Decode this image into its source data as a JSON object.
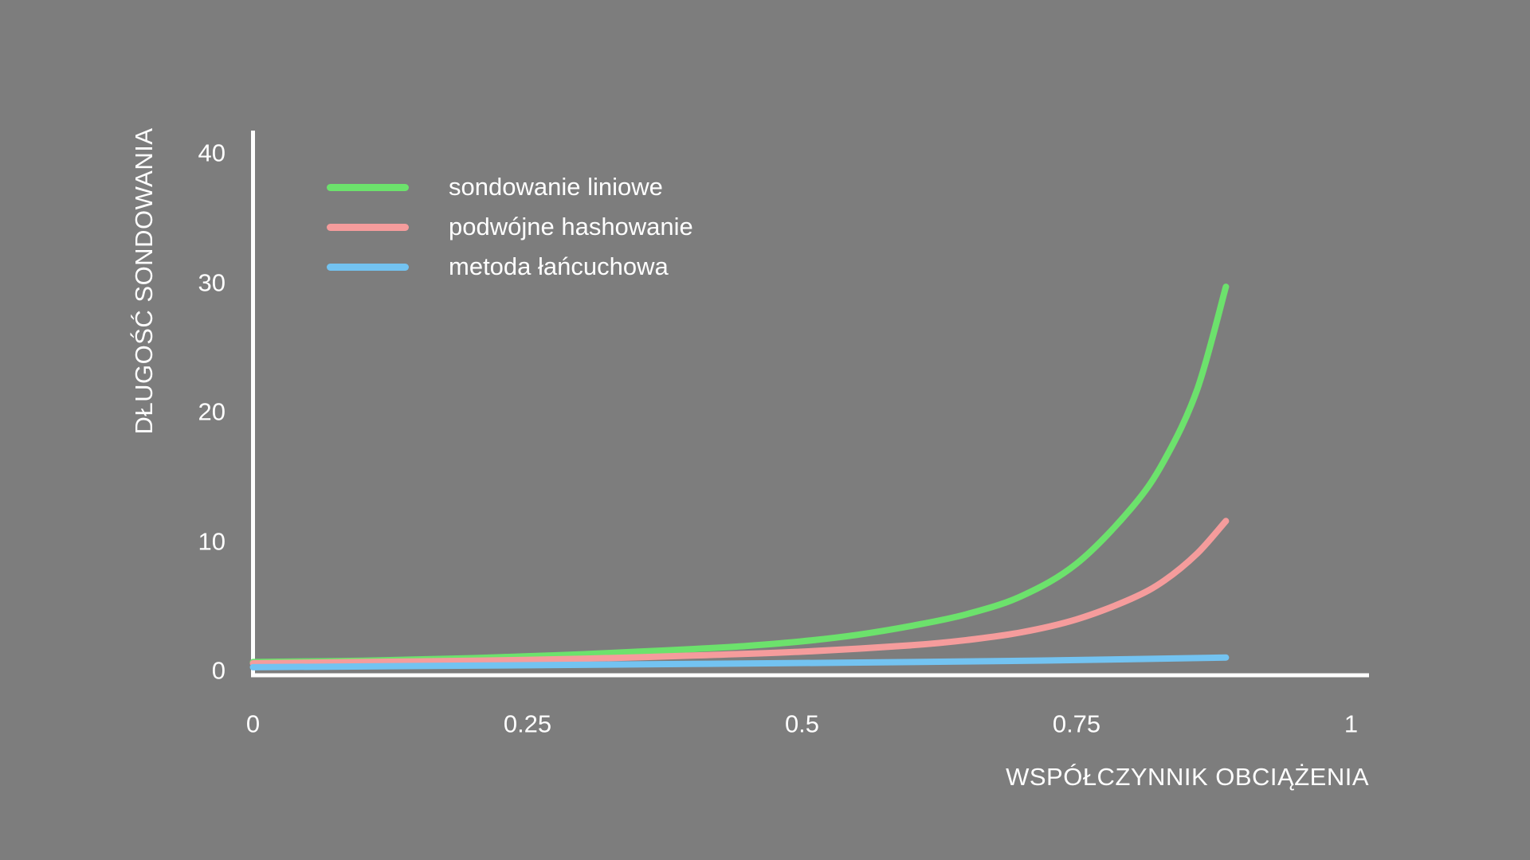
{
  "canvas": {
    "background_color": "#7d7d7d",
    "axis_color": "#ffffff",
    "text_color": "#ffffff"
  },
  "chart_data": {
    "type": "line",
    "title": "",
    "xlabel": "WSPÓŁCZYNNIK OBCIĄŻENIA",
    "ylabel": "DŁUGOŚĆ SONDOWANIA",
    "xlim": [
      0,
      1.02
    ],
    "ylim": [
      0,
      42
    ],
    "grid": false,
    "x_ticks": [
      {
        "label": "0",
        "value": 0
      },
      {
        "label": "0.25",
        "value": 0.25
      },
      {
        "label": "0.5",
        "value": 0.5
      },
      {
        "label": "0.75",
        "value": 0.75
      },
      {
        "label": "1",
        "value": 1
      }
    ],
    "y_ticks": [
      {
        "label": "0",
        "value": 0
      },
      {
        "label": "10",
        "value": 10
      },
      {
        "label": "20",
        "value": 20
      },
      {
        "label": "30",
        "value": 30
      },
      {
        "label": "40",
        "value": 40
      }
    ],
    "legend_position": "top-left-inside",
    "series": [
      {
        "name": "sondowanie liniowe",
        "color": "#6ce26c",
        "x": [
          0,
          0.05,
          0.1,
          0.15,
          0.2,
          0.25,
          0.3,
          0.35,
          0.4,
          0.45,
          0.5,
          0.55,
          0.6,
          0.65,
          0.7,
          0.75,
          0.8,
          0.83,
          0.86,
          0.886
        ],
        "values": [
          0.9,
          0.95,
          1.0,
          1.1,
          1.2,
          1.35,
          1.5,
          1.7,
          1.9,
          2.15,
          2.5,
          3.0,
          3.7,
          4.6,
          6.0,
          8.5,
          12.8,
          16.5,
          22.0,
          29.9
        ]
      },
      {
        "name": "podwójne hashowanie",
        "color": "#f59c9c",
        "x": [
          0,
          0.1,
          0.2,
          0.3,
          0.4,
          0.5,
          0.6,
          0.65,
          0.7,
          0.75,
          0.8,
          0.83,
          0.86,
          0.886
        ],
        "values": [
          0.8,
          0.9,
          1.0,
          1.15,
          1.4,
          1.7,
          2.2,
          2.6,
          3.2,
          4.2,
          5.8,
          7.2,
          9.3,
          11.8
        ]
      },
      {
        "name": "metoda łańcuchowa",
        "color": "#73c3f1",
        "x": [
          0,
          0.2,
          0.4,
          0.6,
          0.75,
          0.886
        ],
        "values": [
          0.5,
          0.62,
          0.75,
          0.9,
          1.05,
          1.25
        ]
      }
    ]
  }
}
